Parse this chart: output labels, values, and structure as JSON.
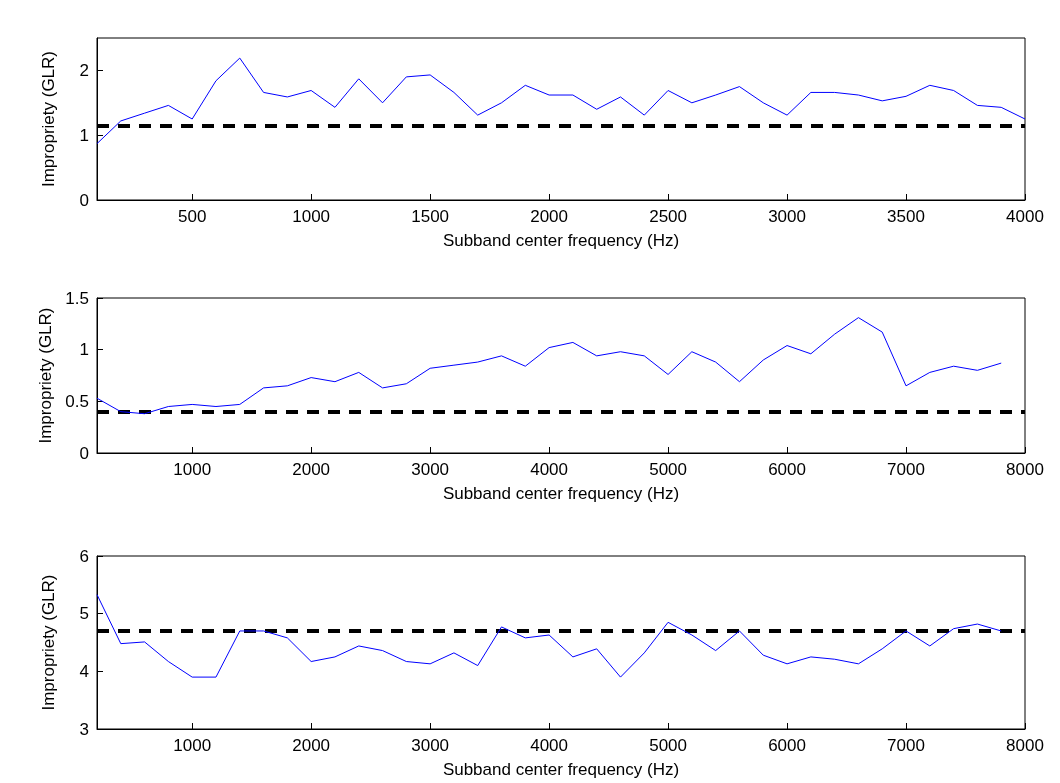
{
  "chart_data": [
    {
      "type": "line",
      "xlabel": "Subband center frequency (Hz)",
      "ylabel": "Impropriety (GLR)",
      "xlim": [
        100,
        4000
      ],
      "xticks": [
        500,
        1000,
        1500,
        2000,
        2500,
        3000,
        3500,
        4000
      ],
      "ylim": [
        0,
        2.5
      ],
      "yticks": [
        0,
        1,
        2
      ],
      "series": [
        {
          "color": "#0000ff",
          "x": [
            100,
            200,
            300,
            400,
            500,
            600,
            700,
            800,
            900,
            1000,
            1100,
            1200,
            1300,
            1400,
            1500,
            1600,
            1700,
            1800,
            1900,
            2000,
            2100,
            2200,
            2300,
            2400,
            2500,
            2600,
            2700,
            2800,
            2900,
            3000,
            3100,
            3200,
            3300,
            3400,
            3500,
            3600,
            3700,
            3800,
            3900,
            4000
          ],
          "values": [
            0.87,
            1.22,
            1.34,
            1.46,
            1.25,
            1.84,
            2.19,
            1.66,
            1.59,
            1.69,
            1.43,
            1.87,
            1.5,
            1.9,
            1.93,
            1.66,
            1.31,
            1.5,
            1.77,
            1.62,
            1.62,
            1.4,
            1.59,
            1.31,
            1.69,
            1.5,
            1.62,
            1.75,
            1.5,
            1.31,
            1.66,
            1.66,
            1.62,
            1.53,
            1.6,
            1.77,
            1.69,
            1.46,
            1.43,
            1.25
          ]
        }
      ],
      "ref_lines": [
        {
          "axis": "y",
          "value": 1.15,
          "color": "#000000",
          "line_style": "dashed"
        }
      ]
    },
    {
      "type": "line",
      "xlabel": "Subband center frequency (Hz)",
      "ylabel": "Impropriety (GLR)",
      "xlim": [
        200,
        8000
      ],
      "xticks": [
        1000,
        2000,
        3000,
        4000,
        5000,
        6000,
        7000,
        8000
      ],
      "ylim": [
        0,
        1.5
      ],
      "yticks": [
        0,
        0.5,
        1,
        1.5
      ],
      "series": [
        {
          "color": "#0000ff",
          "x": [
            200,
            400,
            600,
            800,
            1000,
            1200,
            1400,
            1600,
            1800,
            2000,
            2200,
            2400,
            2600,
            2800,
            3000,
            3200,
            3400,
            3600,
            3800,
            4000,
            4200,
            4400,
            4600,
            4800,
            5000,
            5200,
            5400,
            5600,
            5800,
            6000,
            6200,
            6400,
            6600,
            6800,
            7000,
            7200,
            7400,
            7600,
            7800
          ],
          "values": [
            0.53,
            0.4,
            0.38,
            0.45,
            0.47,
            0.45,
            0.47,
            0.63,
            0.65,
            0.73,
            0.69,
            0.78,
            0.63,
            0.67,
            0.82,
            0.85,
            0.88,
            0.94,
            0.84,
            1.02,
            1.07,
            0.94,
            0.98,
            0.94,
            0.76,
            0.98,
            0.88,
            0.69,
            0.9,
            1.04,
            0.96,
            1.15,
            1.31,
            1.17,
            0.65,
            0.78,
            0.84,
            0.8,
            0.87
          ]
        }
      ],
      "ref_lines": [
        {
          "axis": "y",
          "value": 0.4,
          "color": "#000000",
          "line_style": "dashed"
        }
      ]
    },
    {
      "type": "line",
      "xlabel": "Subband center frequency (Hz)",
      "ylabel": "Impropriety (GLR)",
      "xlim": [
        200,
        8000
      ],
      "xticks": [
        1000,
        2000,
        3000,
        4000,
        5000,
        6000,
        7000,
        8000
      ],
      "ylim": [
        3,
        6
      ],
      "yticks": [
        3,
        4,
        5,
        6
      ],
      "series": [
        {
          "color": "#0000ff",
          "x": [
            200,
            400,
            600,
            800,
            1000,
            1200,
            1400,
            1600,
            1800,
            2000,
            2200,
            2400,
            2600,
            2800,
            3000,
            3200,
            3400,
            3600,
            3800,
            4000,
            4200,
            4400,
            4600,
            4800,
            5000,
            5200,
            5400,
            5600,
            5800,
            6000,
            6200,
            6400,
            6600,
            6800,
            7000,
            7200,
            7400,
            7600,
            7800
          ],
          "values": [
            5.33,
            4.48,
            4.51,
            4.17,
            3.9,
            3.9,
            4.7,
            4.7,
            4.58,
            4.17,
            4.25,
            4.44,
            4.36,
            4.17,
            4.13,
            4.32,
            4.1,
            4.77,
            4.58,
            4.63,
            4.25,
            4.39,
            3.9,
            4.32,
            4.85,
            4.63,
            4.36,
            4.7,
            4.28,
            4.13,
            4.25,
            4.21,
            4.13,
            4.39,
            4.7,
            4.44,
            4.74,
            4.82,
            4.7
          ]
        }
      ],
      "ref_lines": [
        {
          "axis": "y",
          "value": 4.7,
          "color": "#000000",
          "line_style": "dashed"
        }
      ]
    }
  ]
}
